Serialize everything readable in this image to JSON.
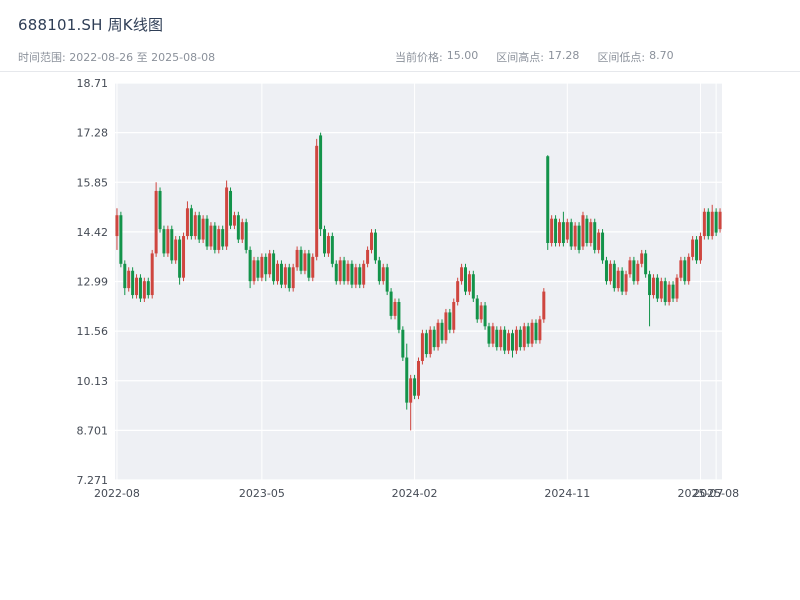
{
  "header": {
    "title": "688101.SH 周K线图",
    "range_label": "时间范围:",
    "range_value": "2022-08-26 至 2025-08-08",
    "stats": [
      {
        "label": "当前价格:",
        "value": "15.00"
      },
      {
        "label": "区间高点:",
        "value": "17.28"
      },
      {
        "label": "区间低点:",
        "value": "8.70"
      }
    ]
  },
  "chart_data": {
    "type": "candlestick",
    "title": "688101.SH 周K线图",
    "subtitle": "周K线 (weekly candles), 2022-08-26 至 2025-08-08",
    "xlabel": "",
    "ylabel": "",
    "ylim": [
      7.271,
      18.71
    ],
    "grid": true,
    "plot_bg": "#eef0f4",
    "grid_color": "#ffffff",
    "up_color": "#cf463f",
    "down_color": "#13934a",
    "current_price": 15.0,
    "range_high": 17.28,
    "range_low": 8.7,
    "y_ticks": [
      18.71,
      17.28,
      15.85,
      14.42,
      12.99,
      11.56,
      10.13,
      8.701,
      7.271
    ],
    "y_tick_labels": [
      "18.71",
      "17.28",
      "15.85",
      "14.42",
      "12.99",
      "11.56",
      "10.13",
      "8.701",
      "7.271"
    ],
    "x_ticks": [
      {
        "label": "2022-08",
        "index": 0
      },
      {
        "label": "2023-05",
        "index": 37
      },
      {
        "label": "2024-02",
        "index": 76
      },
      {
        "label": "2024-11",
        "index": 115
      },
      {
        "label": "2025-07",
        "index": 149
      },
      {
        "label": "2025-08",
        "index": 153
      }
    ],
    "candles_format": [
      "open",
      "high",
      "low",
      "close"
    ],
    "candles": [
      [
        14.3,
        15.1,
        13.9,
        14.9
      ],
      [
        14.9,
        15.0,
        13.4,
        13.5
      ],
      [
        13.5,
        13.6,
        12.6,
        12.8
      ],
      [
        12.8,
        13.4,
        12.7,
        13.3
      ],
      [
        13.3,
        13.4,
        12.5,
        12.6
      ],
      [
        12.6,
        13.2,
        12.5,
        13.1
      ],
      [
        13.1,
        13.2,
        12.4,
        12.5
      ],
      [
        12.5,
        13.1,
        12.4,
        13.0
      ],
      [
        13.0,
        13.1,
        12.5,
        12.6
      ],
      [
        12.6,
        13.9,
        12.5,
        13.8
      ],
      [
        13.8,
        15.85,
        13.7,
        15.6
      ],
      [
        15.6,
        15.7,
        14.4,
        14.5
      ],
      [
        14.5,
        14.6,
        13.7,
        13.8
      ],
      [
        13.8,
        14.6,
        13.7,
        14.5
      ],
      [
        14.5,
        14.6,
        13.5,
        13.6
      ],
      [
        13.6,
        14.3,
        13.5,
        14.2
      ],
      [
        14.2,
        14.3,
        12.9,
        13.1
      ],
      [
        13.1,
        14.4,
        13.0,
        14.3
      ],
      [
        14.3,
        15.3,
        14.2,
        15.1
      ],
      [
        15.1,
        15.2,
        14.2,
        14.3
      ],
      [
        14.3,
        15.0,
        14.2,
        14.9
      ],
      [
        14.9,
        15.0,
        14.1,
        14.2
      ],
      [
        14.2,
        14.9,
        14.1,
        14.8
      ],
      [
        14.8,
        14.9,
        13.9,
        14.0
      ],
      [
        14.0,
        14.7,
        13.9,
        14.6
      ],
      [
        14.6,
        14.7,
        13.8,
        13.9
      ],
      [
        13.9,
        14.6,
        13.8,
        14.5
      ],
      [
        14.5,
        14.6,
        13.9,
        14.0
      ],
      [
        14.0,
        15.9,
        13.9,
        15.7
      ],
      [
        15.6,
        15.7,
        14.5,
        14.6
      ],
      [
        14.6,
        15.0,
        14.5,
        14.9
      ],
      [
        14.9,
        15.0,
        14.1,
        14.2
      ],
      [
        14.2,
        14.8,
        14.1,
        14.7
      ],
      [
        14.7,
        14.8,
        13.8,
        13.9
      ],
      [
        13.9,
        14.0,
        12.8,
        13.0
      ],
      [
        13.0,
        13.7,
        12.9,
        13.6
      ],
      [
        13.6,
        13.7,
        13.0,
        13.1
      ],
      [
        13.1,
        13.8,
        13.0,
        13.7
      ],
      [
        13.7,
        13.8,
        13.0,
        13.2
      ],
      [
        13.2,
        13.9,
        13.1,
        13.8
      ],
      [
        13.8,
        13.9,
        12.9,
        13.0
      ],
      [
        13.0,
        13.6,
        12.9,
        13.5
      ],
      [
        13.5,
        13.6,
        12.8,
        12.9
      ],
      [
        12.9,
        13.5,
        12.8,
        13.4
      ],
      [
        13.4,
        13.5,
        12.7,
        12.8
      ],
      [
        12.8,
        13.5,
        12.7,
        13.4
      ],
      [
        13.4,
        14.0,
        13.3,
        13.9
      ],
      [
        13.9,
        14.0,
        13.2,
        13.3
      ],
      [
        13.3,
        13.9,
        13.2,
        13.8
      ],
      [
        13.8,
        13.9,
        13.0,
        13.1
      ],
      [
        13.1,
        13.8,
        13.0,
        13.7
      ],
      [
        13.7,
        17.1,
        13.6,
        16.9
      ],
      [
        17.2,
        17.28,
        14.3,
        14.5
      ],
      [
        14.5,
        14.6,
        13.7,
        13.8
      ],
      [
        13.8,
        14.4,
        13.7,
        14.3
      ],
      [
        14.3,
        14.4,
        13.4,
        13.5
      ],
      [
        13.5,
        13.6,
        12.9,
        13.0
      ],
      [
        13.0,
        13.7,
        12.9,
        13.6
      ],
      [
        13.6,
        13.7,
        12.9,
        13.0
      ],
      [
        13.0,
        13.6,
        12.9,
        13.5
      ],
      [
        13.5,
        13.6,
        12.8,
        12.9
      ],
      [
        12.9,
        13.5,
        12.8,
        13.4
      ],
      [
        13.4,
        13.5,
        12.8,
        12.9
      ],
      [
        12.9,
        13.6,
        12.8,
        13.5
      ],
      [
        13.5,
        14.0,
        13.4,
        13.9
      ],
      [
        13.9,
        14.5,
        13.8,
        14.4
      ],
      [
        14.4,
        14.5,
        13.5,
        13.6
      ],
      [
        13.6,
        13.7,
        12.9,
        13.0
      ],
      [
        13.0,
        13.5,
        12.9,
        13.4
      ],
      [
        13.4,
        13.5,
        12.6,
        12.7
      ],
      [
        12.7,
        12.8,
        11.9,
        12.0
      ],
      [
        12.0,
        12.5,
        11.9,
        12.4
      ],
      [
        12.4,
        12.5,
        11.5,
        11.6
      ],
      [
        11.6,
        11.7,
        10.7,
        10.8
      ],
      [
        10.8,
        11.2,
        9.3,
        9.5
      ],
      [
        9.5,
        10.3,
        8.7,
        10.2
      ],
      [
        10.2,
        10.3,
        9.6,
        9.7
      ],
      [
        9.7,
        10.8,
        9.6,
        10.7
      ],
      [
        10.7,
        11.6,
        10.6,
        11.5
      ],
      [
        11.5,
        11.6,
        10.8,
        10.9
      ],
      [
        10.9,
        11.7,
        10.8,
        11.6
      ],
      [
        11.6,
        11.7,
        11.0,
        11.1
      ],
      [
        11.1,
        11.9,
        11.0,
        11.8
      ],
      [
        11.8,
        11.9,
        11.2,
        11.3
      ],
      [
        11.3,
        12.2,
        11.2,
        12.1
      ],
      [
        12.1,
        12.2,
        11.5,
        11.6
      ],
      [
        11.6,
        12.5,
        11.5,
        12.4
      ],
      [
        12.4,
        13.1,
        12.3,
        13.0
      ],
      [
        13.0,
        13.5,
        12.9,
        13.4
      ],
      [
        13.4,
        13.5,
        12.6,
        12.7
      ],
      [
        12.7,
        13.3,
        12.6,
        13.2
      ],
      [
        13.2,
        13.3,
        12.4,
        12.5
      ],
      [
        12.5,
        12.6,
        11.8,
        11.9
      ],
      [
        11.9,
        12.4,
        11.8,
        12.3
      ],
      [
        12.3,
        12.4,
        11.6,
        11.7
      ],
      [
        11.7,
        11.8,
        11.1,
        11.2
      ],
      [
        11.2,
        11.8,
        11.1,
        11.7
      ],
      [
        11.6,
        11.7,
        11.0,
        11.1
      ],
      [
        11.1,
        11.7,
        11.0,
        11.6
      ],
      [
        11.6,
        11.7,
        10.9,
        11.0
      ],
      [
        11.0,
        11.6,
        10.9,
        11.5
      ],
      [
        11.5,
        11.6,
        10.8,
        11.0
      ],
      [
        11.0,
        11.7,
        10.9,
        11.6
      ],
      [
        11.6,
        11.7,
        11.0,
        11.1
      ],
      [
        11.1,
        11.8,
        11.0,
        11.7
      ],
      [
        11.7,
        11.8,
        11.1,
        11.2
      ],
      [
        11.2,
        11.9,
        11.1,
        11.8
      ],
      [
        11.8,
        11.9,
        11.2,
        11.3
      ],
      [
        11.3,
        12.0,
        11.2,
        11.9
      ],
      [
        11.9,
        12.8,
        11.8,
        12.7
      ],
      [
        16.6,
        16.63,
        13.9,
        14.1
      ],
      [
        14.1,
        14.9,
        14.0,
        14.8
      ],
      [
        14.8,
        14.9,
        14.0,
        14.1
      ],
      [
        14.1,
        14.8,
        14.0,
        14.7
      ],
      [
        14.7,
        15.0,
        14.0,
        14.1
      ],
      [
        14.2,
        14.8,
        14.1,
        14.7
      ],
      [
        14.7,
        14.8,
        13.9,
        14.0
      ],
      [
        14.0,
        14.7,
        13.9,
        14.6
      ],
      [
        14.6,
        14.7,
        13.8,
        13.9
      ],
      [
        14.0,
        15.0,
        13.9,
        14.9
      ],
      [
        14.8,
        14.9,
        14.0,
        14.1
      ],
      [
        14.1,
        14.8,
        14.0,
        14.7
      ],
      [
        14.7,
        14.8,
        13.8,
        13.9
      ],
      [
        13.9,
        14.5,
        13.8,
        14.4
      ],
      [
        14.4,
        14.5,
        13.5,
        13.6
      ],
      [
        13.6,
        13.7,
        12.9,
        13.0
      ],
      [
        13.0,
        13.6,
        12.9,
        13.5
      ],
      [
        13.5,
        13.6,
        12.7,
        12.8
      ],
      [
        12.8,
        13.4,
        12.7,
        13.3
      ],
      [
        13.3,
        13.4,
        12.6,
        12.7
      ],
      [
        12.7,
        13.3,
        12.6,
        13.2
      ],
      [
        13.2,
        13.7,
        13.1,
        13.6
      ],
      [
        13.6,
        13.7,
        12.9,
        13.0
      ],
      [
        13.0,
        13.6,
        12.9,
        13.5
      ],
      [
        13.5,
        13.9,
        13.4,
        13.8
      ],
      [
        13.8,
        13.9,
        13.1,
        13.2
      ],
      [
        13.2,
        13.3,
        11.7,
        12.6
      ],
      [
        12.6,
        13.2,
        12.5,
        13.1
      ],
      [
        13.1,
        13.2,
        12.4,
        12.5
      ],
      [
        12.5,
        13.1,
        12.4,
        13.0
      ],
      [
        13.0,
        13.1,
        12.3,
        12.4
      ],
      [
        12.4,
        13.0,
        12.3,
        12.9
      ],
      [
        12.9,
        13.0,
        12.4,
        12.5
      ],
      [
        12.5,
        13.2,
        12.4,
        13.1
      ],
      [
        13.1,
        13.7,
        13.0,
        13.6
      ],
      [
        13.6,
        13.7,
        12.9,
        13.0
      ],
      [
        13.0,
        13.8,
        12.9,
        13.7
      ],
      [
        13.7,
        14.3,
        13.6,
        14.2
      ],
      [
        14.2,
        14.3,
        13.5,
        13.6
      ],
      [
        13.6,
        14.4,
        13.5,
        14.3
      ],
      [
        14.3,
        15.1,
        14.2,
        15.0
      ],
      [
        15.0,
        15.1,
        14.2,
        14.3
      ],
      [
        14.3,
        15.2,
        14.2,
        15.0
      ],
      [
        15.0,
        15.1,
        14.3,
        14.4
      ],
      [
        14.5,
        15.1,
        14.4,
        15.0
      ]
    ]
  }
}
